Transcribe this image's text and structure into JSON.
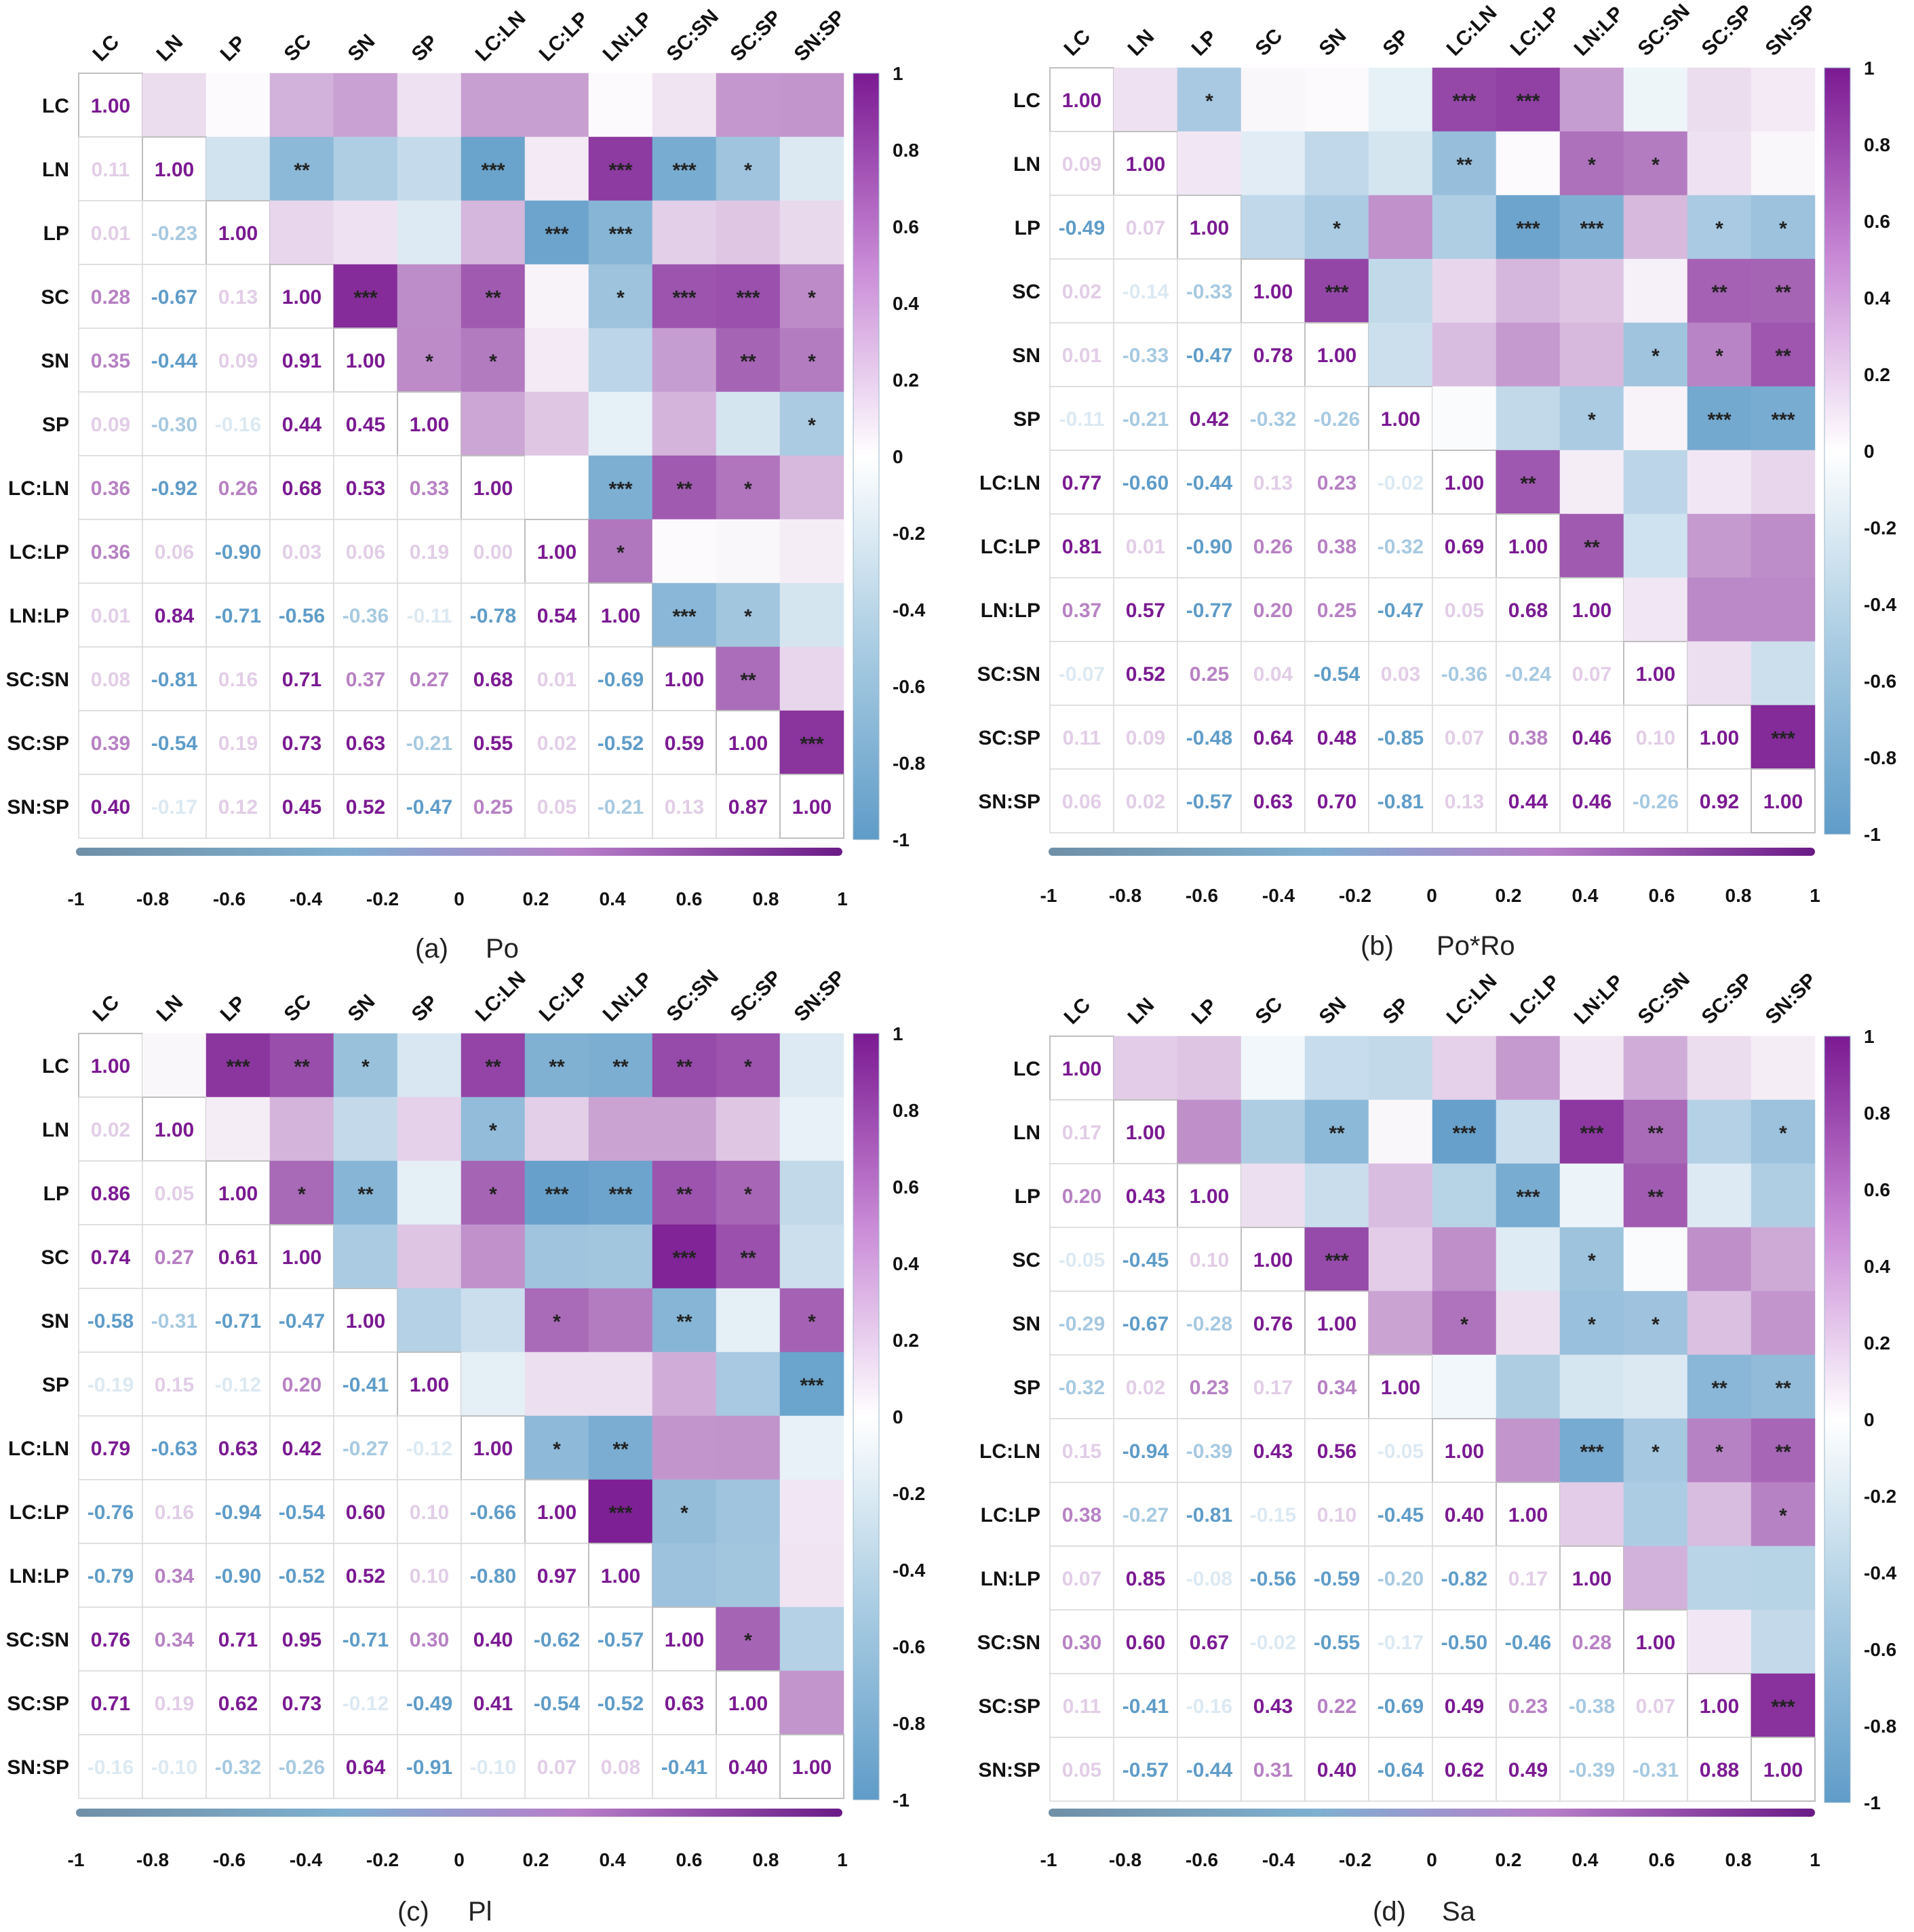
{
  "variables": [
    "LC",
    "LN",
    "LP",
    "SC",
    "SN",
    "SP",
    "LC:LN",
    "LC:LP",
    "LN:LP",
    "SC:SN",
    "SC:SP",
    "SN:SP"
  ],
  "colorbar": {
    "ticks": [
      "1",
      "0.8",
      "0.6",
      "0.4",
      "0.2",
      "0",
      "-0.2",
      "-0.4",
      "-0.6",
      "-0.8",
      "-1"
    ],
    "axis_ticks": [
      "-1",
      "-0.8",
      "-0.6",
      "-0.4",
      "-0.2",
      "0",
      "0.2",
      "0.4",
      "0.6",
      "0.8",
      "1"
    ]
  },
  "colors": {
    "positive": "#7b1a92",
    "negative": "#5f9cc8",
    "neutral": "#ffffff",
    "grid": "#d9d9d9"
  },
  "chart_data": [
    {
      "type": "heatmap",
      "panel": "(a)",
      "title": "Po",
      "zlim": [
        -1,
        1
      ],
      "lower": [
        [
          null
        ],
        [
          0.11,
          null
        ],
        [
          0.01,
          -0.23,
          null
        ],
        [
          0.28,
          -0.67,
          0.13,
          null
        ],
        [
          0.35,
          -0.44,
          0.09,
          0.91,
          null
        ],
        [
          0.09,
          -0.3,
          -0.16,
          0.44,
          0.45,
          null
        ],
        [
          0.36,
          -0.92,
          0.26,
          0.68,
          0.53,
          0.33,
          null
        ],
        [
          0.36,
          0.06,
          -0.9,
          0.03,
          0.06,
          0.19,
          0.0,
          null
        ],
        [
          0.01,
          0.84,
          -0.71,
          -0.56,
          -0.36,
          -0.11,
          -0.78,
          0.54,
          null
        ],
        [
          0.08,
          -0.81,
          0.16,
          0.71,
          0.37,
          0.27,
          0.68,
          0.01,
          -0.69,
          null
        ],
        [
          0.39,
          -0.54,
          0.19,
          0.73,
          0.63,
          -0.21,
          0.55,
          0.02,
          -0.52,
          0.59,
          null
        ],
        [
          0.4,
          -0.17,
          0.12,
          0.45,
          0.52,
          -0.47,
          0.25,
          0.05,
          -0.21,
          0.13,
          0.87,
          null
        ]
      ],
      "upper_sig": [
        [
          "",
          "",
          "",
          "",
          "",
          "",
          "",
          "",
          "",
          "",
          "",
          ""
        ],
        [
          "",
          "",
          "",
          "**",
          "",
          "",
          "***",
          "",
          "***",
          "***",
          "*",
          ""
        ],
        [
          "",
          "",
          "",
          "",
          "",
          "",
          "",
          "***",
          "***",
          "",
          "",
          ""
        ],
        [
          "",
          "",
          "",
          "",
          "***",
          "",
          "**",
          "",
          "*",
          "***",
          "***",
          "*"
        ],
        [
          "",
          "",
          "",
          "",
          "",
          "*",
          "*",
          "",
          "",
          "",
          "**",
          "*"
        ],
        [
          "",
          "",
          "",
          "",
          "",
          "",
          "",
          "",
          "",
          "",
          "",
          "*"
        ],
        [
          "",
          "",
          "",
          "",
          "",
          "",
          "",
          "",
          "***",
          "**",
          "*",
          ""
        ],
        [
          "",
          "",
          "",
          "",
          "",
          "",
          "",
          "",
          "*",
          "",
          "",
          ""
        ],
        [
          "",
          "",
          "",
          "",
          "",
          "",
          "",
          "",
          "",
          "***",
          "*",
          ""
        ],
        [
          "",
          "",
          "",
          "",
          "",
          "",
          "",
          "",
          "",
          "",
          "**",
          ""
        ],
        [
          "",
          "",
          "",
          "",
          "",
          "",
          "",
          "",
          "",
          "",
          "",
          "***"
        ],
        [
          "",
          "",
          "",
          "",
          "",
          "",
          "",
          "",
          "",
          "",
          "",
          ""
        ]
      ]
    },
    {
      "type": "heatmap",
      "panel": "(b)",
      "title": "Po*Ro",
      "zlim": [
        -1,
        1
      ],
      "lower": [
        [
          null
        ],
        [
          0.09,
          null
        ],
        [
          -0.49,
          0.07,
          null
        ],
        [
          0.02,
          -0.14,
          -0.33,
          null
        ],
        [
          0.01,
          -0.33,
          -0.47,
          0.78,
          null
        ],
        [
          -0.11,
          -0.21,
          0.42,
          -0.32,
          -0.26,
          null
        ],
        [
          0.77,
          -0.6,
          -0.44,
          0.13,
          0.23,
          -0.02,
          null
        ],
        [
          0.81,
          0.01,
          -0.9,
          0.26,
          0.38,
          -0.32,
          0.69,
          null
        ],
        [
          0.37,
          0.57,
          -0.77,
          0.2,
          0.25,
          -0.47,
          0.05,
          0.68,
          null
        ],
        [
          -0.07,
          0.52,
          0.25,
          0.04,
          -0.54,
          0.03,
          -0.36,
          -0.24,
          0.07,
          null
        ],
        [
          0.11,
          0.09,
          -0.48,
          0.64,
          0.48,
          -0.85,
          0.07,
          0.38,
          0.46,
          0.1,
          null
        ],
        [
          0.06,
          0.02,
          -0.57,
          0.63,
          0.7,
          -0.81,
          0.13,
          0.44,
          0.46,
          -0.26,
          0.92,
          null
        ]
      ],
      "upper_sig": [
        [
          "",
          "",
          "*",
          "",
          "",
          "",
          "***",
          "***",
          "",
          "",
          "",
          ""
        ],
        [
          "",
          "",
          "",
          "",
          "",
          "",
          "**",
          "",
          "*",
          "*",
          "",
          ""
        ],
        [
          "",
          "",
          "",
          "",
          "*",
          "",
          "",
          "***",
          "***",
          "",
          "*",
          "*"
        ],
        [
          "",
          "",
          "",
          "",
          "***",
          "",
          "",
          "",
          "",
          "",
          "**",
          "**"
        ],
        [
          "",
          "",
          "",
          "",
          "",
          "",
          "",
          "",
          "",
          "*",
          "*",
          "**"
        ],
        [
          "",
          "",
          "",
          "",
          "",
          "",
          "",
          "",
          "*",
          "",
          "***",
          "***"
        ],
        [
          "",
          "",
          "",
          "",
          "",
          "",
          "",
          "**",
          "",
          "",
          "",
          ""
        ],
        [
          "",
          "",
          "",
          "",
          "",
          "",
          "",
          "",
          "**",
          "",
          "",
          ""
        ],
        [
          "",
          "",
          "",
          "",
          "",
          "",
          "",
          "",
          "",
          "",
          "",
          ""
        ],
        [
          "",
          "",
          "",
          "",
          "",
          "",
          "",
          "",
          "",
          "",
          "",
          ""
        ],
        [
          "",
          "",
          "",
          "",
          "",
          "",
          "",
          "",
          "",
          "",
          "",
          "***"
        ],
        [
          "",
          "",
          "",
          "",
          "",
          "",
          "",
          "",
          "",
          "",
          "",
          ""
        ]
      ]
    },
    {
      "type": "heatmap",
      "panel": "(c)",
      "title": "Pl",
      "zlim": [
        -1,
        1
      ],
      "lower": [
        [
          null
        ],
        [
          0.02,
          null
        ],
        [
          0.86,
          0.05,
          null
        ],
        [
          0.74,
          0.27,
          0.61,
          null
        ],
        [
          -0.58,
          -0.31,
          -0.71,
          -0.47,
          null
        ],
        [
          -0.19,
          0.15,
          -0.12,
          0.2,
          -0.41,
          null
        ],
        [
          0.79,
          -0.63,
          0.63,
          0.42,
          -0.27,
          -0.12,
          null
        ],
        [
          -0.76,
          0.16,
          -0.94,
          -0.54,
          0.6,
          0.1,
          -0.66,
          null
        ],
        [
          -0.79,
          0.34,
          -0.9,
          -0.52,
          0.52,
          0.1,
          -0.8,
          0.97,
          null
        ],
        [
          0.76,
          0.34,
          0.71,
          0.95,
          -0.71,
          0.3,
          0.4,
          -0.62,
          -0.57,
          null
        ],
        [
          0.71,
          0.19,
          0.62,
          0.73,
          -0.12,
          -0.49,
          0.41,
          -0.54,
          -0.52,
          0.63,
          null
        ],
        [
          -0.16,
          -0.1,
          -0.32,
          -0.26,
          0.64,
          -0.91,
          -0.1,
          0.07,
          0.08,
          -0.41,
          0.4,
          null
        ]
      ],
      "upper_sig": [
        [
          "",
          "",
          "***",
          "**",
          "*",
          "",
          "**",
          "**",
          "**",
          "**",
          "*",
          ""
        ],
        [
          "",
          "",
          "",
          "",
          "",
          "",
          "*",
          "",
          "",
          "",
          "",
          ""
        ],
        [
          "",
          "",
          "",
          "*",
          "**",
          "",
          "*",
          "***",
          "***",
          "**",
          "*",
          ""
        ],
        [
          "",
          "",
          "",
          "",
          "",
          "",
          "",
          "",
          "",
          "***",
          "**",
          ""
        ],
        [
          "",
          "",
          "",
          "",
          "",
          "",
          "",
          "*",
          "",
          "**",
          "",
          "*"
        ],
        [
          "",
          "",
          "",
          "",
          "",
          "",
          "",
          "",
          "",
          "",
          "",
          "***"
        ],
        [
          "",
          "",
          "",
          "",
          "",
          "",
          "",
          "*",
          "**",
          "",
          "",
          ""
        ],
        [
          "",
          "",
          "",
          "",
          "",
          "",
          "",
          "",
          "***",
          "*",
          "",
          ""
        ],
        [
          "",
          "",
          "",
          "",
          "",
          "",
          "",
          "",
          "",
          "",
          "",
          ""
        ],
        [
          "",
          "",
          "",
          "",
          "",
          "",
          "",
          "",
          "",
          "",
          "*",
          ""
        ],
        [
          "",
          "",
          "",
          "",
          "",
          "",
          "",
          "",
          "",
          "",
          "",
          ""
        ],
        [
          "",
          "",
          "",
          "",
          "",
          "",
          "",
          "",
          "",
          "",
          "",
          ""
        ]
      ]
    },
    {
      "type": "heatmap",
      "panel": "(d)",
      "title": "Sa",
      "zlim": [
        -1,
        1
      ],
      "lower": [
        [
          null
        ],
        [
          0.17,
          null
        ],
        [
          0.2,
          0.43,
          null
        ],
        [
          -0.05,
          -0.45,
          0.1,
          null
        ],
        [
          -0.29,
          -0.67,
          -0.28,
          0.76,
          null
        ],
        [
          -0.32,
          0.02,
          0.23,
          0.17,
          0.34,
          null
        ],
        [
          0.15,
          -0.94,
          -0.39,
          0.43,
          0.56,
          -0.05,
          null
        ],
        [
          0.38,
          -0.27,
          -0.81,
          -0.15,
          0.1,
          -0.45,
          0.4,
          null
        ],
        [
          0.07,
          0.85,
          -0.08,
          -0.56,
          -0.59,
          -0.2,
          -0.82,
          0.17,
          null
        ],
        [
          0.3,
          0.6,
          0.67,
          -0.02,
          -0.55,
          -0.17,
          -0.5,
          -0.46,
          0.28,
          null
        ],
        [
          0.11,
          -0.41,
          -0.16,
          0.43,
          0.22,
          -0.69,
          0.49,
          0.23,
          -0.38,
          0.07,
          null
        ],
        [
          0.05,
          -0.57,
          -0.44,
          0.31,
          0.4,
          -0.64,
          0.62,
          0.49,
          -0.39,
          -0.31,
          0.88,
          null
        ]
      ],
      "upper_sig": [
        [
          "",
          "",
          "",
          "",
          "",
          "",
          "",
          "",
          "",
          "",
          "",
          ""
        ],
        [
          "",
          "",
          "",
          "",
          "**",
          "",
          "***",
          "",
          "***",
          "**",
          "",
          "*"
        ],
        [
          "",
          "",
          "",
          "",
          "",
          "",
          "",
          "***",
          "",
          "**",
          "",
          ""
        ],
        [
          "",
          "",
          "",
          "",
          "***",
          "",
          "",
          "",
          "*",
          "",
          "",
          ""
        ],
        [
          "",
          "",
          "",
          "",
          "",
          "",
          "*",
          "",
          "*",
          "*",
          "",
          ""
        ],
        [
          "",
          "",
          "",
          "",
          "",
          "",
          "",
          "",
          "",
          "",
          "**",
          "**"
        ],
        [
          "",
          "",
          "",
          "",
          "",
          "",
          "",
          "",
          "***",
          "*",
          "*",
          "**"
        ],
        [
          "",
          "",
          "",
          "",
          "",
          "",
          "",
          "",
          "",
          "",
          "",
          "*"
        ],
        [
          "",
          "",
          "",
          "",
          "",
          "",
          "",
          "",
          "",
          "",
          "",
          ""
        ],
        [
          "",
          "",
          "",
          "",
          "",
          "",
          "",
          "",
          "",
          "",
          "",
          ""
        ],
        [
          "",
          "",
          "",
          "",
          "",
          "",
          "",
          "",
          "",
          "",
          "",
          "***"
        ],
        [
          "",
          "",
          "",
          "",
          "",
          "",
          "",
          "",
          "",
          "",
          "",
          ""
        ]
      ]
    }
  ]
}
